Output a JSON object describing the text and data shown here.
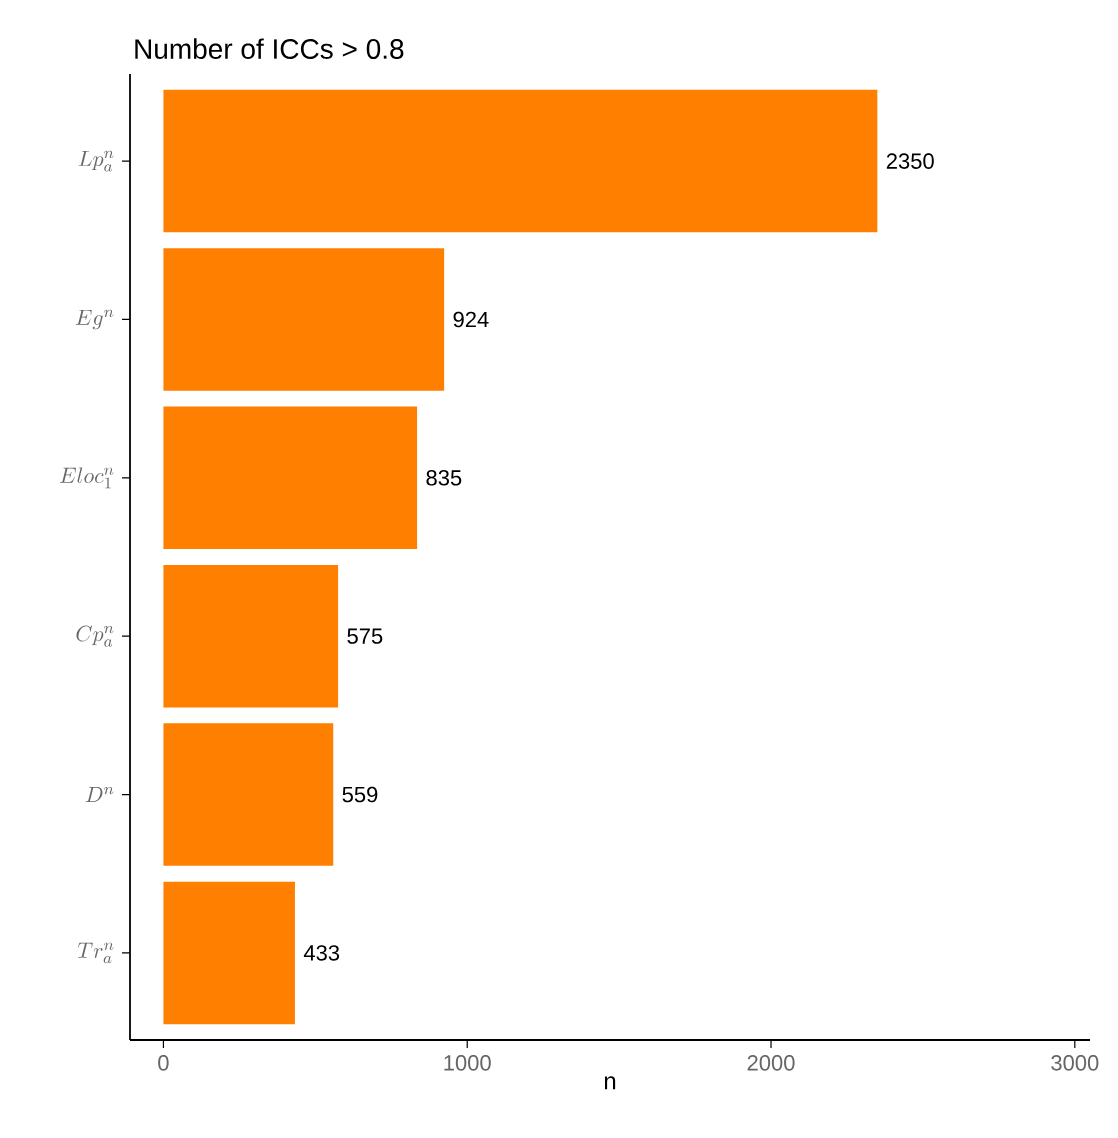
{
  "chart_data": {
    "type": "bar",
    "orientation": "horizontal",
    "title": "Number of ICCs > 0.8",
    "xlabel": "n",
    "categories": [
      "Lp_a^n",
      "Eg^n",
      "Eloc_1^n",
      "Cp_a^n",
      "D^n",
      "Tr_a^n"
    ],
    "values": [
      2350,
      924,
      835,
      575,
      559,
      433
    ],
    "color": "#ff7f00",
    "xlim": [
      -110,
      3050
    ],
    "xticks": [
      0,
      1000,
      2000,
      3000
    ],
    "data_labels": true,
    "grid": false
  }
}
